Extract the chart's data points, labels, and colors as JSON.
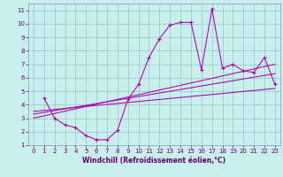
{
  "xlabel": "Windchill (Refroidissement éolien,°C)",
  "background_color": "#c8eeee",
  "grid_color": "#a0cccc",
  "line_color": "#aa00aa",
  "spine_color": "#8899aa",
  "xlim": [
    -0.5,
    23.5
  ],
  "ylim": [
    1,
    11.5
  ],
  "xticks": [
    0,
    1,
    2,
    3,
    4,
    5,
    6,
    7,
    8,
    9,
    10,
    11,
    12,
    13,
    14,
    15,
    16,
    17,
    18,
    19,
    20,
    21,
    22,
    23
  ],
  "yticks": [
    1,
    2,
    3,
    4,
    5,
    6,
    7,
    8,
    9,
    10,
    11
  ],
  "main_x": [
    1,
    2,
    3,
    4,
    5,
    6,
    7,
    8,
    9,
    10,
    11,
    12,
    13,
    14,
    15,
    16,
    17,
    18,
    19,
    20,
    21,
    22,
    23
  ],
  "main_y": [
    4.5,
    3.0,
    2.5,
    2.3,
    1.7,
    1.4,
    1.4,
    2.1,
    4.4,
    5.5,
    7.5,
    8.9,
    9.9,
    10.1,
    10.1,
    6.6,
    11.1,
    6.7,
    7.0,
    6.5,
    6.4,
    7.5,
    5.5
  ],
  "line1_x": [
    0,
    23
  ],
  "line1_y": [
    3.0,
    7.0
  ],
  "line2_x": [
    0,
    23
  ],
  "line2_y": [
    3.3,
    6.3
  ],
  "line3_x": [
    0,
    23
  ],
  "line3_y": [
    3.5,
    5.2
  ],
  "tick_color": "#660066",
  "label_fontsize": 5.5,
  "tick_fontsize": 5.0
}
